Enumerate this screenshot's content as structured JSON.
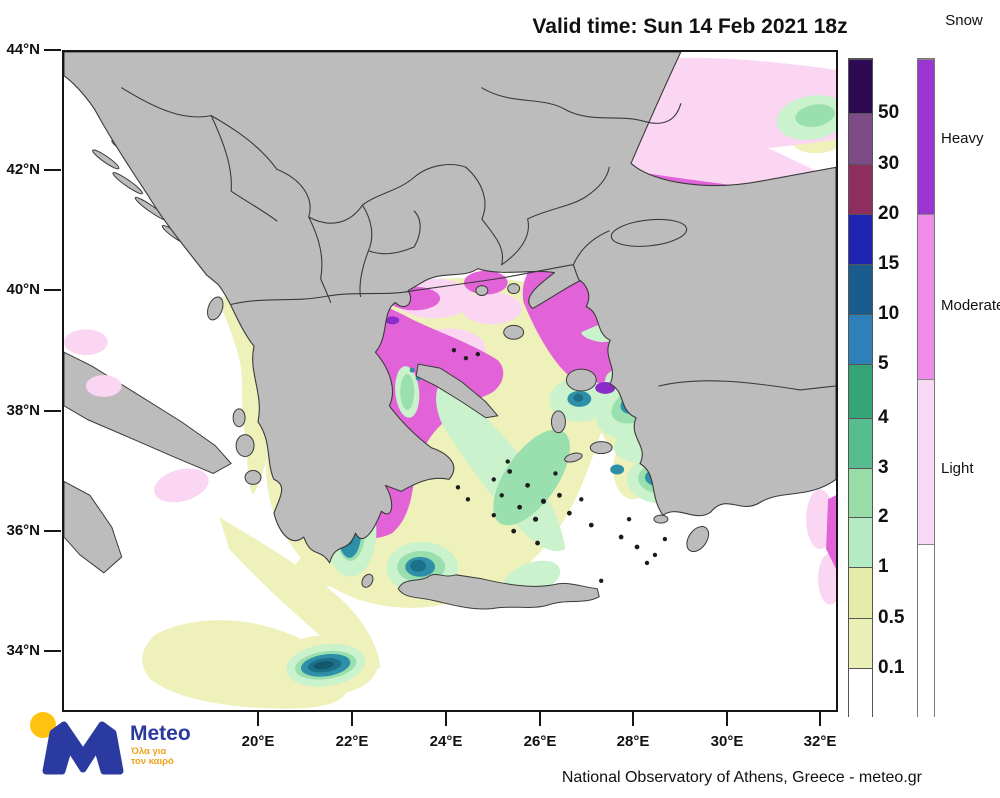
{
  "title": "Valid time: Sun 14 Feb 2021 18z",
  "map": {
    "lat_labels": [
      "44°N",
      "42°N",
      "40°N",
      "38°N",
      "36°N",
      "34°N"
    ],
    "lon_labels": [
      "20°E",
      "22°E",
      "24°E",
      "26°E",
      "28°E",
      "30°E",
      "32°E"
    ]
  },
  "colorbar": {
    "values": [
      "50",
      "30",
      "20",
      "15",
      "10",
      "5",
      "4",
      "3",
      "2",
      "1",
      "0.5",
      "0.1"
    ],
    "segment_colors": [
      "#2e0a54",
      "#7d4b85",
      "#8e2d5e",
      "#1f25b2",
      "#1a5c8e",
      "#2e81b8",
      "#35a476",
      "#58bd8e",
      "#98dca8",
      "#b5ebc2",
      "#e5ecaa",
      "#e9efb5",
      "#ffffff"
    ]
  },
  "snow_legend": {
    "title": "Snow",
    "categories": [
      {
        "label": "Heavy",
        "color": "#9a35cf"
      },
      {
        "label": "Moderate",
        "color": "#ee8ce9"
      },
      {
        "label": "Light",
        "color": "#f8d9f4"
      },
      {
        "label": "",
        "color": "#ffffff"
      }
    ]
  },
  "attribution": "National Observatory of Athens, Greece - meteo.gr",
  "logo": {
    "brand": "Meteo",
    "tagline_line1": "Όλα για",
    "tagline_line2": "τον καιρό",
    "brand_color": "#2b3aa0",
    "tagline_color": "#f0a31c",
    "dot_color": "#ffc20e"
  },
  "palette": {
    "land": "#bcbcbc",
    "sea": "#ffffff",
    "border": "#3a3a3a",
    "pink": "#fbd6f3",
    "magenta": "#e263d8",
    "purple": "#8c2cc8",
    "yellow": "#eef1ba",
    "mint": "#c9f2cd",
    "green": "#9adfae",
    "teal": "#2e8fa8",
    "tealDark": "#1d7089",
    "tealCore": "#14586e"
  }
}
